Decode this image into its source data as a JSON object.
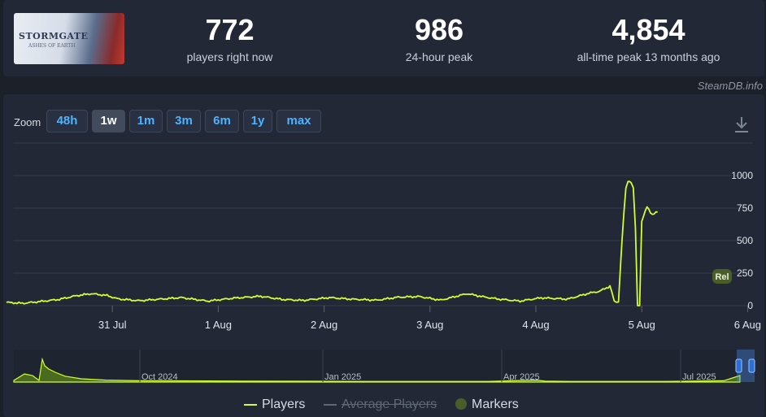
{
  "header": {
    "game_logo_text": "STORMGATE",
    "game_logo_subtitle": "ASHES OF EARTH",
    "stats": [
      {
        "value": "772",
        "label": "players right now"
      },
      {
        "value": "986",
        "label": "24-hour peak"
      },
      {
        "value": "4,854",
        "label": "all-time peak 13 months ago"
      }
    ]
  },
  "watermark": "SteamDB.info",
  "zoom": {
    "label": "Zoom",
    "options": [
      "48h",
      "1w",
      "1m",
      "3m",
      "6m",
      "1y",
      "max"
    ],
    "active": "1w"
  },
  "legend": {
    "players": "Players",
    "average": "Average Players",
    "markers": "Markers"
  },
  "colors": {
    "series": "#d1ff33",
    "grid": "#323b4a",
    "tick_text": "#e0e4ea",
    "marker": "#4a5e2a"
  },
  "chart_data": {
    "type": "line",
    "x_tick_labels": [
      "31 Jul",
      "1 Aug",
      "2 Aug",
      "3 Aug",
      "4 Aug",
      "5 Aug",
      "6 Aug"
    ],
    "y_ticks": [
      0,
      250,
      500,
      750,
      1000
    ],
    "ylim": [
      0,
      1000
    ],
    "xlim_days": [
      "30 Jul 2025",
      "6 Aug 2025"
    ],
    "marker_label": "Rel",
    "series": [
      {
        "name": "Players",
        "x_days": [
          0.0,
          0.15,
          0.3,
          0.5,
          0.65,
          0.8,
          0.95,
          1.05,
          1.25,
          1.45,
          1.65,
          1.9,
          2.15,
          2.4,
          2.6,
          2.8,
          3.05,
          3.25,
          3.5,
          3.7,
          3.9,
          4.1,
          4.35,
          4.5,
          4.65,
          4.85,
          5.05,
          5.3,
          5.5,
          5.6,
          5.7,
          5.72,
          5.74,
          5.78,
          5.8,
          5.83,
          5.85,
          5.87,
          5.9,
          5.92,
          5.94,
          5.96,
          5.98,
          6.0,
          6.05,
          6.1,
          6.15
        ],
        "values": [
          25,
          18,
          30,
          48,
          75,
          92,
          78,
          52,
          38,
          50,
          62,
          35,
          58,
          72,
          48,
          40,
          62,
          50,
          42,
          65,
          70,
          42,
          92,
          68,
          50,
          35,
          60,
          50,
          95,
          110,
          150,
          100,
          30,
          30,
          320,
          700,
          900,
          960,
          950,
          900,
          600,
          0,
          0,
          650,
          760,
          700,
          720
        ]
      }
    ],
    "navigator": {
      "labels": [
        "Oct 2024",
        "Jan 2025",
        "Apr 2025",
        "Jul 2025"
      ],
      "peak_all_time": 4854
    }
  }
}
